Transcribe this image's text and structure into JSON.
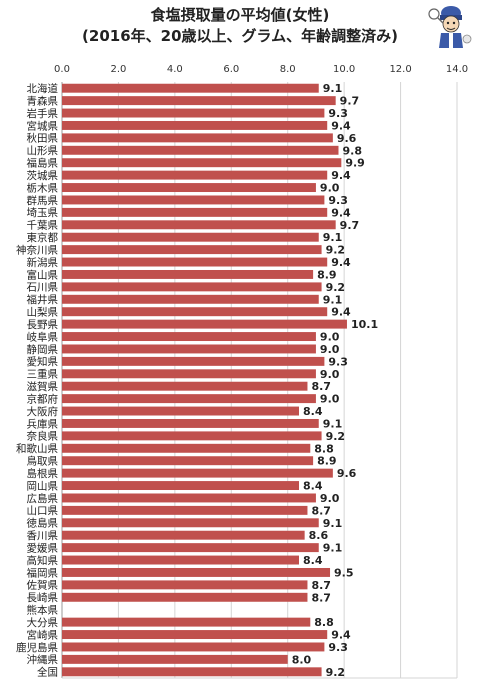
{
  "chart_data": {
    "type": "bar",
    "orientation": "horizontal",
    "title": "食塩摂取量の平均値(女性)",
    "subtitle": "(2016年、20歳以上、グラム、年齢調整済み)",
    "xlim": [
      0,
      14
    ],
    "xticks": [
      "0.0",
      "2.0",
      "4.0",
      "6.0",
      "8.0",
      "10.0",
      "12.0",
      "14.0"
    ],
    "bar_color": "#c0504d",
    "grid": true,
    "categories": [
      "北海道",
      "青森県",
      "岩手県",
      "宮城県",
      "秋田県",
      "山形県",
      "福島県",
      "茨城県",
      "栃木県",
      "群馬県",
      "埼玉県",
      "千葉県",
      "東京都",
      "神奈川県",
      "新潟県",
      "富山県",
      "石川県",
      "福井県",
      "山梨県",
      "長野県",
      "岐阜県",
      "静岡県",
      "愛知県",
      "三重県",
      "滋賀県",
      "京都府",
      "大阪府",
      "兵庫県",
      "奈良県",
      "和歌山県",
      "鳥取県",
      "島根県",
      "岡山県",
      "広島県",
      "山口県",
      "徳島県",
      "香川県",
      "愛媛県",
      "高知県",
      "福岡県",
      "佐賀県",
      "長崎県",
      "熊本県",
      "大分県",
      "宮崎県",
      "鹿児島県",
      "沖縄県",
      "全国"
    ],
    "values": [
      9.1,
      9.7,
      9.3,
      9.4,
      9.6,
      9.8,
      9.9,
      9.4,
      9.0,
      9.3,
      9.4,
      9.7,
      9.1,
      9.2,
      9.4,
      8.9,
      9.2,
      9.1,
      9.4,
      10.1,
      9.0,
      9.0,
      9.3,
      9.0,
      8.7,
      9.0,
      8.4,
      9.1,
      9.2,
      8.8,
      8.9,
      9.6,
      8.4,
      9.0,
      8.7,
      9.1,
      8.6,
      9.1,
      8.4,
      9.5,
      8.7,
      8.7,
      null,
      8.8,
      9.4,
      9.3,
      8.0,
      9.2
    ],
    "labels": [
      "9.1",
      "9.7",
      "9.3",
      "9.4",
      "9.6",
      "9.8",
      "9.9",
      "9.4",
      "9.0",
      "9.3",
      "9.4",
      "9.7",
      "9.1",
      "9.2",
      "9.4",
      "8.9",
      "9.2",
      "9.1",
      "9.4",
      "10.1",
      "9.0",
      "9.0",
      "9.3",
      "9.0",
      "8.7",
      "9.0",
      "8.4",
      "9.1",
      "9.2",
      "8.8",
      "8.9",
      "9.6",
      "8.4",
      "9.0",
      "8.7",
      "9.1",
      "8.6",
      "9.1",
      "8.4",
      "9.5",
      "8.7",
      "8.7",
      "",
      "8.8",
      "9.4",
      "9.3",
      "8.0",
      "9.2"
    ]
  },
  "mascot": {
    "icon": "mascot-icon"
  }
}
